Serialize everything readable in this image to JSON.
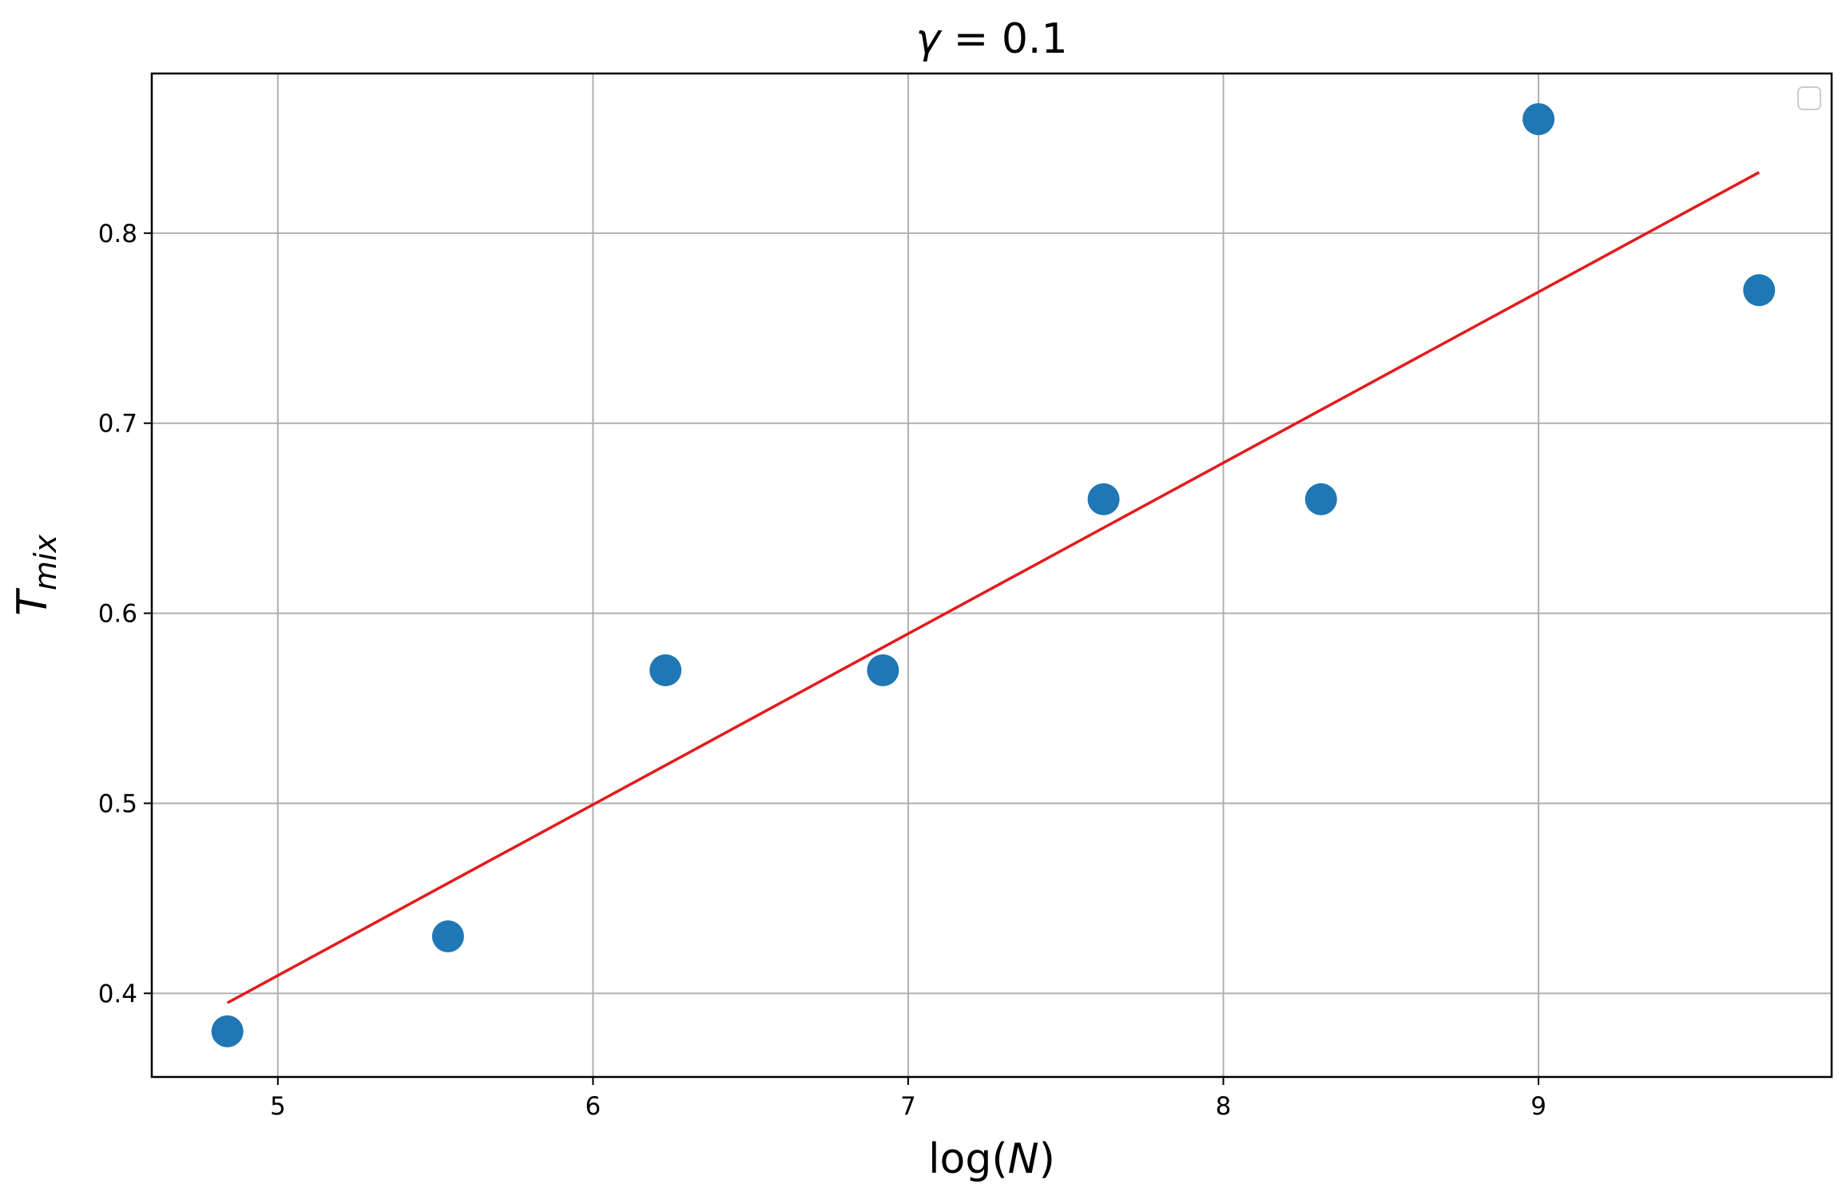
{
  "chart_data": {
    "type": "scatter",
    "title": "γ = 0.1",
    "xlabel": "log(N)",
    "ylabel": "T_mix",
    "xlim": [
      4.6,
      9.93
    ],
    "ylim": [
      0.356,
      0.884
    ],
    "xticks": [
      5,
      6,
      7,
      8,
      9
    ],
    "yticks": [
      0.4,
      0.5,
      0.6,
      0.7,
      0.8
    ],
    "xtick_labels": [
      "5",
      "6",
      "7",
      "8",
      "9"
    ],
    "ytick_labels": [
      "0.4",
      "0.5",
      "0.6",
      "0.7",
      "0.8"
    ],
    "grid": true,
    "legend": {
      "placement": "top-right",
      "entries": []
    },
    "series": [
      {
        "kind": "scatter",
        "color": "#1f77b4",
        "x": [
          4.84,
          5.54,
          6.23,
          6.92,
          7.62,
          8.31,
          9.0,
          9.7
        ],
        "y": [
          0.38,
          0.43,
          0.57,
          0.57,
          0.66,
          0.66,
          0.86,
          0.77
        ]
      },
      {
        "kind": "line",
        "color": "#e31a1c",
        "x": [
          4.84,
          9.7
        ],
        "y": [
          0.395,
          0.832
        ]
      }
    ]
  }
}
